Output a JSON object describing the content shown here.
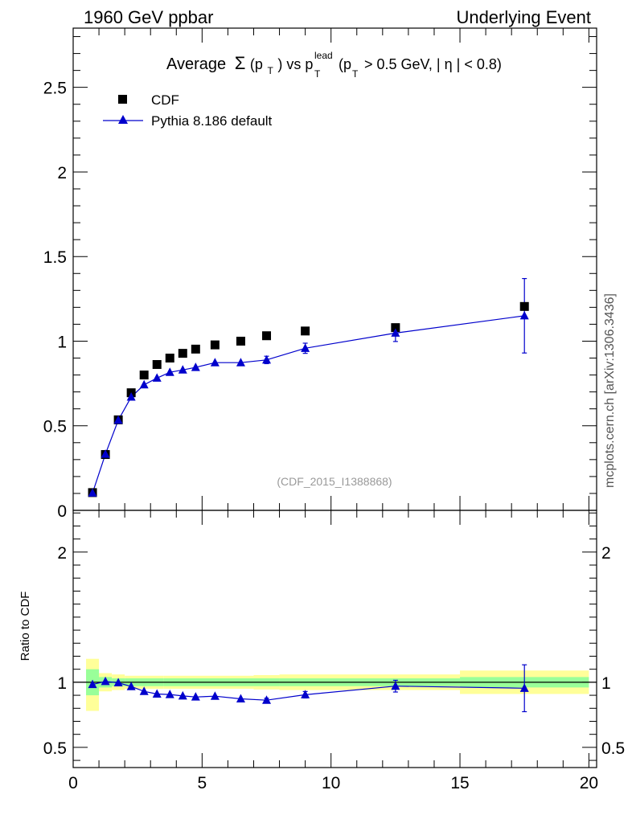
{
  "header": {
    "left": "1960 GeV ppbar",
    "right": "Underlying Event"
  },
  "side_label": "mcplots.cern.ch [arXiv:1306.3436]",
  "title": {
    "average": "Average",
    "sigma": "Σ",
    "pt_open": "(p",
    "sub_t": "T",
    "pt_close": ") vs p",
    "sup_lead": "lead",
    "cut_open": "(p",
    "cut_rest": "> 0.5 GeV, |",
    "eta": "η",
    "cut_end": "| < 0.8)"
  },
  "watermark": "(CDF_2015_I1388868)",
  "legend": {
    "cdf": "CDF",
    "pythia": "Pythia 8.186 default"
  },
  "colors": {
    "data_marker": "#000000",
    "mc_line": "#0000cc",
    "band_inner": "#99ff99",
    "band_outer": "#ffff99"
  },
  "chart_data": [
    {
      "type": "scatter",
      "panel": "main",
      "title": "Average Σ(pT) vs pT lead (pT > 0.5 GeV, |η| < 0.8)",
      "xlabel": "",
      "ylabel": "",
      "xlim": [
        0,
        20.3
      ],
      "ylim": [
        0,
        2.85
      ],
      "y_ticks": [
        {
          "v": 0,
          "label": "0"
        },
        {
          "v": 0.5,
          "label": "0.5"
        },
        {
          "v": 1,
          "label": "1"
        },
        {
          "v": 1.5,
          "label": "1.5"
        },
        {
          "v": 2,
          "label": "2"
        },
        {
          "v": 2.5,
          "label": "2.5"
        }
      ],
      "legend_position": "top-left",
      "series": [
        {
          "name": "CDF",
          "marker": "square",
          "x": [
            0.75,
            1.25,
            1.75,
            2.25,
            2.75,
            3.25,
            3.75,
            4.25,
            4.75,
            5.5,
            6.5,
            7.5,
            9.0,
            12.5,
            17.5
          ],
          "y": [
            0.105,
            0.33,
            0.535,
            0.695,
            0.8,
            0.862,
            0.9,
            0.928,
            0.953,
            0.978,
            1.0,
            1.032,
            1.06,
            1.08,
            1.205
          ],
          "yerr": [
            0,
            0,
            0,
            0,
            0,
            0,
            0,
            0,
            0,
            0,
            0,
            0,
            0,
            0,
            0
          ]
        },
        {
          "name": "Pythia 8.186 default",
          "marker": "triangle",
          "x": [
            0.75,
            1.25,
            1.75,
            2.25,
            2.75,
            3.25,
            3.75,
            4.25,
            4.75,
            5.5,
            6.5,
            7.5,
            9.0,
            12.5,
            17.5
          ],
          "y": [
            0.103,
            0.332,
            0.533,
            0.67,
            0.742,
            0.782,
            0.816,
            0.83,
            0.845,
            0.873,
            0.873,
            0.889,
            0.958,
            1.048,
            1.15
          ],
          "yerr": [
            0.005,
            0.005,
            0.006,
            0.007,
            0.008,
            0.009,
            0.01,
            0.01,
            0.01,
            0.012,
            0.014,
            0.022,
            0.03,
            0.05,
            0.22
          ]
        }
      ]
    },
    {
      "type": "line",
      "panel": "ratio",
      "ylabel": "Ratio to CDF",
      "xlim": [
        0,
        20.3
      ],
      "ylim": [
        0.345,
        2.32
      ],
      "x_ticks": [
        {
          "v": 0,
          "label": "0"
        },
        {
          "v": 5,
          "label": "5"
        },
        {
          "v": 10,
          "label": "10"
        },
        {
          "v": 15,
          "label": "15"
        },
        {
          "v": 20,
          "label": "20"
        }
      ],
      "y_ticks": [
        {
          "v": 0.5,
          "label": "0.5"
        },
        {
          "v": 1,
          "label": "1"
        },
        {
          "v": 2,
          "label": "2"
        }
      ],
      "reference_line": 1,
      "bands": [
        {
          "x0": 0.5,
          "x1": 1.0,
          "inner": [
            0.9,
            1.1
          ],
          "outer": [
            0.78,
            1.18
          ]
        },
        {
          "x0": 1.0,
          "x1": 1.5,
          "inner": [
            0.96,
            1.04
          ],
          "outer": [
            0.93,
            1.07
          ]
        },
        {
          "x0": 1.5,
          "x1": 2.0,
          "inner": [
            0.97,
            1.03
          ],
          "outer": [
            0.94,
            1.06
          ]
        },
        {
          "x0": 2.0,
          "x1": 3.5,
          "inner": [
            0.97,
            1.03
          ],
          "outer": [
            0.95,
            1.05
          ]
        },
        {
          "x0": 3.5,
          "x1": 7.0,
          "inner": [
            0.97,
            1.03
          ],
          "outer": [
            0.95,
            1.05
          ]
        },
        {
          "x0": 7.0,
          "x1": 8.0,
          "inner": [
            0.97,
            1.03
          ],
          "outer": [
            0.945,
            1.055
          ]
        },
        {
          "x0": 8.0,
          "x1": 15.0,
          "inner": [
            0.97,
            1.03
          ],
          "outer": [
            0.94,
            1.06
          ]
        },
        {
          "x0": 15.0,
          "x1": 20.0,
          "inner": [
            0.96,
            1.04
          ],
          "outer": [
            0.91,
            1.09
          ]
        }
      ],
      "series": [
        {
          "name": "Pythia 8.186 default",
          "x": [
            0.75,
            1.25,
            1.75,
            2.25,
            2.75,
            3.25,
            3.75,
            4.25,
            4.75,
            5.5,
            6.5,
            7.5,
            9.0,
            12.5,
            17.5
          ],
          "y": [
            0.983,
            1.006,
            0.996,
            0.967,
            0.93,
            0.91,
            0.906,
            0.895,
            0.887,
            0.893,
            0.873,
            0.862,
            0.904,
            0.97,
            0.954
          ],
          "yerr": [
            0,
            0,
            0,
            0,
            0,
            0,
            0,
            0,
            0,
            0,
            0,
            0.015,
            0.025,
            0.045,
            0.18
          ]
        }
      ]
    }
  ]
}
